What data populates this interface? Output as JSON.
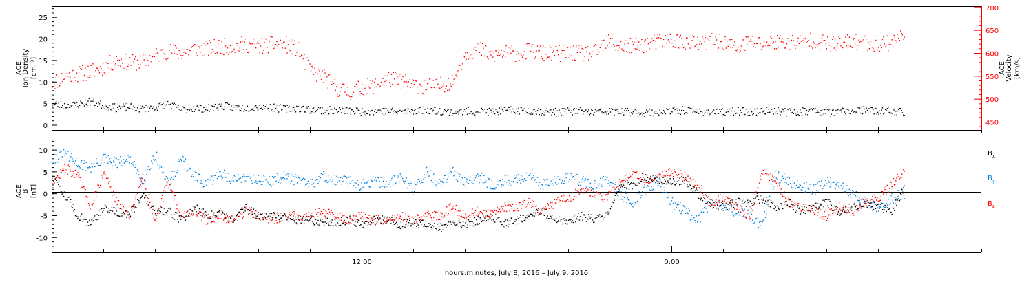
{
  "chart_data": [
    {
      "type": "scatter",
      "left_ylabel": [
        "ACE",
        "Ion Density",
        "[cm⁻³]"
      ],
      "right_ylabel": [
        "ACE",
        "Velocity",
        "[km/s]"
      ],
      "x_ticks": [
        "12:00",
        "0:00"
      ],
      "yticks_left": [
        0,
        5,
        10,
        15,
        20,
        25
      ],
      "yticks_right": [
        450,
        500,
        550,
        600,
        650,
        700
      ],
      "ylim_left": [
        -1.2,
        27.5
      ],
      "ylim_right": [
        432,
        702
      ],
      "colors": {
        "density": "#000000",
        "velocity": "#ff0000"
      },
      "series": [
        {
          "axis": "left",
          "color": "#000000",
          "x": [
            0,
            0.5,
            1,
            1.5,
            2,
            2.5,
            3,
            3.5,
            4,
            4.5,
            5,
            5.5,
            6,
            6.5,
            7,
            7.5,
            8,
            8.5,
            9,
            9.5,
            10,
            10.5,
            11,
            11.5,
            12,
            12.5,
            13,
            13.5,
            14,
            14.5,
            15,
            15.5,
            16,
            16.5,
            17,
            17.5,
            18,
            18.5,
            19,
            19.5,
            20,
            20.5,
            21,
            21.5,
            22,
            22.5,
            23,
            23.5,
            24,
            24.5,
            25,
            25.5,
            26,
            26.5,
            27,
            27.5,
            28,
            28.5,
            29,
            29.5,
            30,
            30.5,
            31,
            31.5,
            32,
            32.5,
            33
          ],
          "values": [
            5,
            4.5,
            4.8,
            5.5,
            4.6,
            4,
            4.3,
            3.8,
            4.2,
            5,
            3.5,
            4,
            3.8,
            4.5,
            4.2,
            4,
            4.3,
            4.1,
            3.8,
            4,
            3.6,
            3.5,
            3.4,
            3.3,
            3.2,
            3.3,
            3.2,
            3.1,
            3.4,
            3.6,
            3.3,
            3,
            3.2,
            3.3,
            3.1,
            3.4,
            3.5,
            3.4,
            3.2,
            3,
            3.2,
            3.3,
            3,
            3.2,
            3.1,
            3,
            2.9,
            3.1,
            3.2,
            3.5,
            3.2,
            3,
            3,
            3.3,
            3.1,
            3.2,
            3.5,
            3,
            3.2,
            3.4,
            3,
            3.1,
            3.3,
            3.5,
            3.2,
            3.3,
            3.1
          ]
        },
        {
          "axis": "right",
          "color": "#ff0000",
          "x": [
            0,
            0.5,
            1,
            1.5,
            2,
            2.5,
            3,
            3.5,
            4,
            4.5,
            5,
            5.5,
            6,
            6.5,
            7,
            7.5,
            8,
            8.5,
            9,
            9.5,
            10,
            10.5,
            11,
            11.5,
            12,
            12.5,
            13,
            13.5,
            14,
            14.5,
            15,
            15.5,
            16,
            16.5,
            17,
            17.5,
            18,
            18.5,
            19,
            19.5,
            20,
            20.5,
            21,
            21.5,
            22,
            22.5,
            23,
            23.5,
            24,
            24.5,
            25,
            25.5,
            26,
            26.5,
            27,
            27.5,
            28,
            28.5,
            29,
            29.5,
            30,
            30.5,
            31,
            31.5,
            32,
            32.5,
            33
          ],
          "values": [
            535,
            550,
            555,
            560,
            570,
            585,
            580,
            580,
            595,
            605,
            600,
            610,
            610,
            615,
            615,
            620,
            615,
            620,
            620,
            610,
            560,
            550,
            525,
            515,
            525,
            530,
            545,
            540,
            530,
            530,
            530,
            540,
            600,
            610,
            595,
            600,
            600,
            605,
            600,
            600,
            600,
            600,
            600,
            625,
            615,
            615,
            620,
            625,
            630,
            625,
            620,
            625,
            625,
            610,
            625,
            620,
            625,
            625,
            625,
            630,
            620,
            620,
            625,
            625,
            620,
            625,
            640
          ]
        }
      ]
    },
    {
      "type": "scatter",
      "left_ylabel": [
        "ACE",
        "B",
        "[nT]"
      ],
      "x_ticks": [
        "12:00",
        "0:00"
      ],
      "yticks_left": [
        -10,
        -5,
        0,
        5,
        10
      ],
      "ylim_left": [
        -13.5,
        14.5
      ],
      "legend": [
        {
          "label": "B",
          "sub": "x",
          "color": "#000000"
        },
        {
          "label": "B",
          "sub": "y",
          "color": "#0080dd"
        },
        {
          "label": "B",
          "sub": "z",
          "color": "#ff0000"
        }
      ],
      "series": [
        {
          "color": "#000000",
          "x": [
            0,
            0.5,
            1,
            1.5,
            2,
            2.5,
            3,
            3.5,
            4,
            4.5,
            5,
            5.5,
            6,
            6.5,
            7,
            7.5,
            8,
            8.5,
            9,
            9.5,
            10,
            10.5,
            11,
            11.5,
            12,
            12.5,
            13,
            13.5,
            14,
            14.5,
            15,
            15.5,
            16,
            16.5,
            17,
            17.5,
            18,
            18.5,
            19,
            19.5,
            20,
            20.5,
            21,
            21.5,
            22,
            22.5,
            23,
            23.5,
            24,
            24.5,
            25,
            25.5,
            26,
            26.5,
            27,
            27.5,
            28,
            28.5,
            29,
            29.5,
            30,
            30.5,
            31,
            31.5,
            32,
            32.5,
            33
          ],
          "values": [
            4,
            0,
            -5,
            -7,
            -3,
            -4,
            -5,
            0,
            -4,
            -4,
            -6,
            -3,
            -5,
            -4,
            -6,
            -3,
            -5,
            -5,
            -5,
            -6,
            -6,
            -6.5,
            -6.5,
            -6,
            -7,
            -6,
            -6,
            -7,
            -6.5,
            -7,
            -8,
            -6,
            -7,
            -6,
            -5,
            -7,
            -6,
            -5,
            -4,
            -6,
            -6,
            -5,
            -6,
            -5,
            2,
            2,
            4,
            3,
            3,
            3,
            0,
            -2,
            -3,
            -2,
            -2,
            -1,
            -3,
            -2,
            -4,
            -3,
            -2,
            -4,
            -3,
            -2,
            -3,
            -4,
            1
          ]
        },
        {
          "color": "#0080dd",
          "x": [
            0,
            0.5,
            1,
            1.5,
            2,
            2.5,
            3,
            3.5,
            4,
            4.5,
            5,
            5.5,
            6,
            6.5,
            7,
            7.5,
            8,
            8.5,
            9,
            9.5,
            10,
            10.5,
            11,
            11.5,
            12,
            12.5,
            13,
            13.5,
            14,
            14.5,
            15,
            15.5,
            16,
            16.5,
            17,
            17.5,
            18,
            18.5,
            19,
            19.5,
            20,
            20.5,
            21,
            21.5,
            22,
            22.5,
            23,
            23.5,
            24,
            24.5,
            25,
            25.5,
            26,
            26.5,
            27,
            27.5,
            28,
            28.5,
            29,
            29.5,
            30,
            30.5,
            31,
            31.5,
            32,
            32.5,
            33
          ],
          "values": [
            8,
            9,
            7,
            6,
            8,
            7,
            8,
            3,
            9,
            2,
            8,
            4,
            2,
            5,
            3,
            4,
            3,
            3,
            4,
            3,
            2,
            4,
            3,
            3,
            2,
            3,
            2,
            4,
            1,
            5,
            2,
            5,
            3,
            4,
            2,
            3,
            3,
            5,
            2,
            3,
            4,
            3,
            2,
            3,
            0,
            -2,
            1,
            3,
            -2,
            -4,
            -6,
            -2,
            -3,
            -4,
            -5,
            -7,
            4,
            3,
            2,
            1,
            3,
            2,
            0,
            -2,
            -3,
            -1,
            0
          ]
        },
        {
          "color": "#ff0000",
          "x": [
            0,
            0.5,
            1,
            1.5,
            2,
            2.5,
            3,
            3.5,
            4,
            4.5,
            5,
            5.5,
            6,
            6.5,
            7,
            7.5,
            8,
            8.5,
            9,
            9.5,
            10,
            10.5,
            11,
            11.5,
            12,
            12.5,
            13,
            13.5,
            14,
            14.5,
            15,
            15.5,
            16,
            16.5,
            17,
            17.5,
            18,
            18.5,
            19,
            19.5,
            20,
            20.5,
            21,
            21.5,
            22,
            22.5,
            23,
            23.5,
            24,
            24.5,
            25,
            25.5,
            26,
            26.5,
            27,
            27.5,
            28,
            28.5,
            29,
            29.5,
            30,
            30.5,
            31,
            31.5,
            32,
            32.5,
            33
          ],
          "values": [
            2,
            6,
            4,
            -3,
            5,
            -2,
            -5,
            4,
            -6,
            3,
            -5,
            -4,
            -6,
            -5,
            -6,
            -4,
            -5,
            -6,
            -5,
            -5,
            -5,
            -4,
            -5,
            -6,
            -5,
            -6,
            -6,
            -5,
            -6,
            -5,
            -5,
            -3,
            -5,
            -4,
            -5,
            -3,
            -3,
            -2,
            -4,
            -2,
            -1,
            1,
            0,
            -1,
            3,
            5,
            3,
            4,
            5,
            4,
            2,
            -2,
            -1,
            -3,
            -5,
            5,
            3,
            -2,
            -3,
            -4,
            -5,
            -3,
            -4,
            -2,
            -1,
            2,
            5
          ]
        }
      ]
    }
  ],
  "xlabel": "hours:minutes,  July  8, 2016  –  July  9, 2016"
}
